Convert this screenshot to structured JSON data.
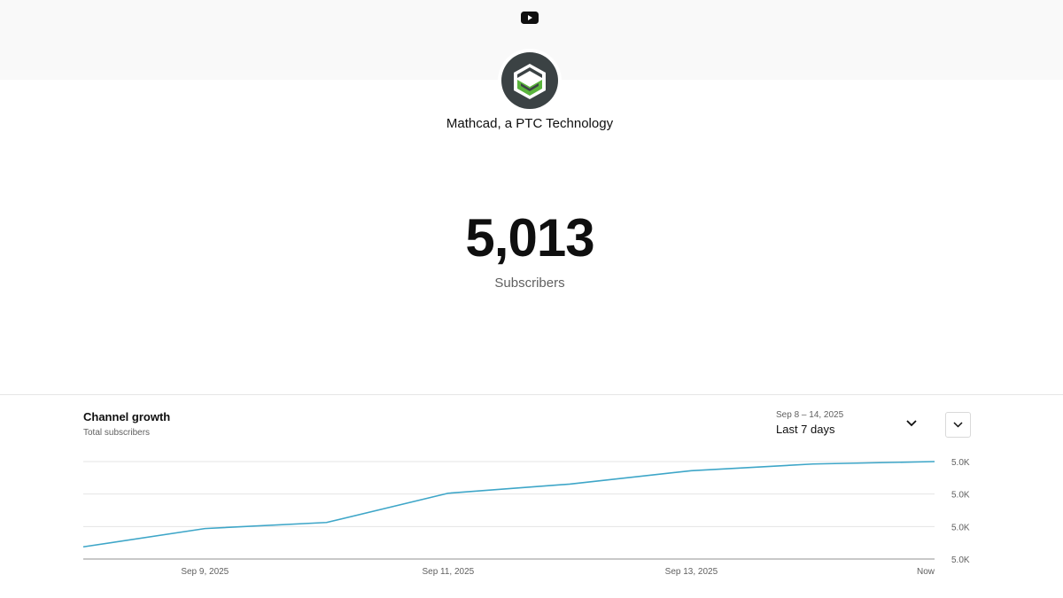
{
  "header": {
    "logo_icon": "youtube-play-icon"
  },
  "channel": {
    "name": "Mathcad, a PTC Technology",
    "avatar_icon": "mathcad-logo"
  },
  "stats": {
    "subscriber_count": "5,013",
    "subscriber_label": "Subscribers"
  },
  "growth": {
    "title": "Channel growth",
    "subtitle": "Total subscribers",
    "date_range": "Sep 8 – 14, 2025",
    "period": "Last 7 days",
    "period_icon": "chevron-down-icon",
    "more_icon": "chevron-down-icon"
  },
  "colors": {
    "line": "#3ea6c8",
    "grid": "#e5e5e5",
    "axis": "#909090",
    "avatar_dark": "#3b4244",
    "avatar_green": "#5ab43c",
    "youtube_icon": "#0f0f0f"
  },
  "chart_data": {
    "type": "line",
    "x": [
      "Sep 8, 2025",
      "Sep 9, 2025",
      "Sep 10, 2025",
      "Sep 11, 2025",
      "Sep 12, 2025",
      "Sep 13, 2025",
      "Sep 14, 2025",
      "Now"
    ],
    "x_tick_labels": [
      "Sep 9, 2025",
      "Sep 11, 2025",
      "Sep 13, 2025",
      "Now"
    ],
    "x_tick_indices": [
      1,
      3,
      5,
      7
    ],
    "values": [
      4999,
      5002,
      5003,
      5007.8,
      5009.3,
      5011.5,
      5012.6,
      5013
    ],
    "y_tick_labels": [
      "5.0K",
      "5.0K",
      "5.0K",
      "5.0K"
    ],
    "ylim": [
      4997,
      5013
    ],
    "grid": true,
    "y_axis_side": "right"
  }
}
